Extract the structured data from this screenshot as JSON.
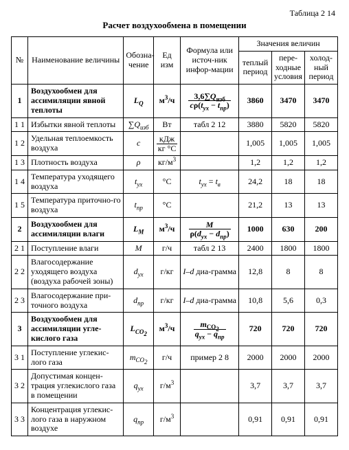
{
  "table_label": "Таблица 2 14",
  "title": "Расчет воздухообмена в помещении",
  "headers": {
    "num": "№",
    "name": "Наименование величины",
    "symbol": "Обозна-чение",
    "unit": "Ед изм",
    "formula": "Формула или источ-ник инфор-мации",
    "values_group": "Значения величин",
    "v1": "теплый период",
    "v2": "пере-ходные условия",
    "v3": "холод-ный период"
  },
  "rows": [
    {
      "num": "1",
      "bold": true,
      "name": "Воздухообмен для ассимиляции явной теплоты",
      "sym_html": "<i>L<sub>Q</sub></i>",
      "unit_html": "м<sup>3</sup>/ч",
      "formula_html": "<span class=\"frac\"><span class=\"top\">3,6∑<i>Q</i><sub>изб</sub></span><span class=\"bot\"><i>c</i>ρ(<i>t<sub>yx</sub></i> − <i>t<sub>np</sub></i>)</span></span>",
      "v1": "3860",
      "v2": "3470",
      "v3": "3470"
    },
    {
      "num": "1 1",
      "name": "Избытки явной теплоты",
      "sym_html": "∑<i>Q</i><sub>изб</sub>",
      "unit_html": "Вт",
      "formula_html": "табл 2 12",
      "v1": "3880",
      "v2": "5820",
      "v3": "5820"
    },
    {
      "num": "1 2",
      "name": "Удельная теплоемкость воздуха",
      "sym_html": "<i>c</i>",
      "unit_html": "<span class=\"frac\"><span class=\"top\">кДж</span><span class=\"bot\">кг °С</span></span>",
      "formula_html": "",
      "v1": "1,005",
      "v2": "1,005",
      "v3": "1,005"
    },
    {
      "num": "1 3",
      "name": "Плотность воздуха",
      "sym_html": "ρ",
      "unit_html": "кг/м<sup>3</sup>",
      "formula_html": "",
      "v1": "1,2",
      "v2": "1,2",
      "v3": "1,2"
    },
    {
      "num": "1 4",
      "name": "Температура уходящего воздуха",
      "sym_html": "<i>t<sub>yx</sub></i>",
      "unit_html": "°С",
      "formula_html": "<i>t<sub>yx</sub></i> = <i>t<sub>в</sub></i>",
      "v1": "24,2",
      "v2": "18",
      "v3": "18"
    },
    {
      "num": "1 5",
      "name": "Температура приточно-го воздуха",
      "sym_html": "<i>t<sub>np</sub></i>",
      "unit_html": "°С",
      "formula_html": "",
      "v1": "21,2",
      "v2": "13",
      "v3": "13"
    },
    {
      "num": "2",
      "bold": true,
      "name": "Воздухообмен для ассимиляции влаги",
      "sym_html": "<i>L<sub>M</sub></i>",
      "unit_html": "м<sup>3</sup>/ч",
      "formula_html": "<span class=\"frac\"><span class=\"top\"><i>M</i></span><span class=\"bot\">ρ(<i>d<sub>yx</sub></i> − <i>d<sub>np</sub></i>)</span></span>",
      "v1": "1000",
      "v2": "630",
      "v3": "200"
    },
    {
      "num": "2 1",
      "name": "Поступление влаги",
      "sym_html": "<i>M</i>",
      "unit_html": "г/ч",
      "formula_html": "табл 2 13",
      "v1": "2400",
      "v2": "1800",
      "v3": "1800"
    },
    {
      "num": "2 2",
      "name": "Влагосодержание уходящего воздуха (воздуха рабочей зоны)",
      "sym_html": "<i>d<sub>yx</sub></i>",
      "unit_html": "г/кг",
      "formula_html": "<i>I–d</i> диа-грамма",
      "v1": "12,8",
      "v2": "8",
      "v3": "8"
    },
    {
      "num": "2 3",
      "name": "Влагосодержание при-точного воздуха",
      "sym_html": "<i>d<sub>np</sub></i>",
      "unit_html": "г/кг",
      "formula_html": "<i>I–d</i> диа-грамма",
      "v1": "10,8",
      "v2": "5,6",
      "v3": "0,3"
    },
    {
      "num": "3",
      "bold": true,
      "name": "Воздухообмен для ассимиляции угле-кислого газа",
      "sym_html": "<i>L</i><sub>CO<sub>2</sub></sub>",
      "unit_html": "м<sup>3</sup>/ч",
      "formula_html": "<span class=\"frac\"><span class=\"top\"><i>m</i><sub>CO<sub>2</sub></sub></span><span class=\"bot\"><i>q<sub>yx</sub></i> − <i>q<sub>np</sub></i></span></span>",
      "v1": "720",
      "v2": "720",
      "v3": "720"
    },
    {
      "num": "3 1",
      "name": "Поступление углекис-лого газа",
      "sym_html": "<i>m</i><sub>CO<sub>2</sub></sub>",
      "unit_html": "г/ч",
      "formula_html": "пример 2 8",
      "v1": "2000",
      "v2": "2000",
      "v3": "2000"
    },
    {
      "num": "3 2",
      "name": "Допустимая концен-трация углекислого газа в помещении",
      "sym_html": "<i>q<sub>yx</sub></i>",
      "unit_html": "г/м<sup>3</sup>",
      "formula_html": "",
      "v1": "3,7",
      "v2": "3,7",
      "v3": "3,7"
    },
    {
      "num": "3 3",
      "name": "Концентрация углекис-лого газа в наружном воздухе",
      "sym_html": "<i>q<sub>np</sub></i>",
      "unit_html": "г/м<sup>3</sup>",
      "formula_html": "",
      "v1": "0,91",
      "v2": "0,91",
      "v3": "0,91"
    }
  ]
}
